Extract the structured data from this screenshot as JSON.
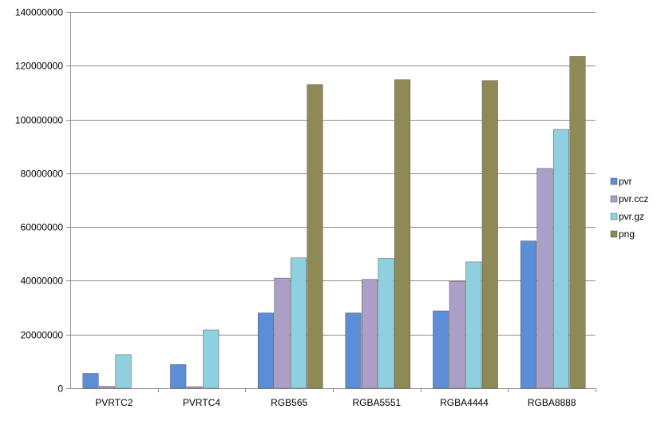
{
  "chart_data": {
    "type": "bar",
    "categories": [
      "PVRTC2",
      "PVRTC4",
      "RGB565",
      "RGBA5551",
      "RGBA4444",
      "RGBA8888"
    ],
    "series": [
      {
        "name": "pvr",
        "color": "#5b8ed6",
        "values": [
          5500000,
          8800000,
          28000000,
          28000000,
          28800000,
          54800000
        ]
      },
      {
        "name": "pvr.ccz",
        "color": "#ab9fc8",
        "values": [
          700000,
          600000,
          41000000,
          40500000,
          39800000,
          81800000
        ]
      },
      {
        "name": "pvr.gz",
        "color": "#8ed0e0",
        "values": [
          12500000,
          21700000,
          48500000,
          48300000,
          47000000,
          96300000
        ]
      },
      {
        "name": "png",
        "color": "#8f8a55",
        "values": [
          null,
          null,
          113000000,
          114800000,
          114500000,
          123500000
        ]
      }
    ],
    "ylim": [
      0,
      140000000
    ],
    "yticks": [
      "0",
      "20000000",
      "40000000",
      "60000000",
      "80000000",
      "100000000",
      "120000000",
      "140000000"
    ],
    "grid": true,
    "legend_position": "right",
    "title": "",
    "xlabel": "",
    "ylabel": ""
  }
}
